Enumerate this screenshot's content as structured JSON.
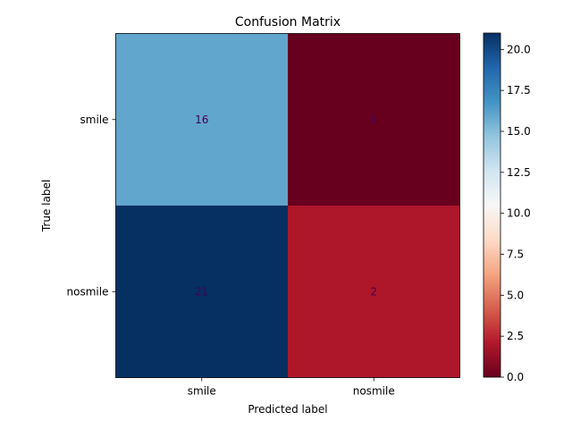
{
  "chart_data": {
    "type": "heatmap",
    "title": "Confusion Matrix",
    "xlabel": "Predicted label",
    "ylabel": "True label",
    "x_categories": [
      "smile",
      "nosmile"
    ],
    "y_categories": [
      "smile",
      "nosmile"
    ],
    "values": [
      [
        16,
        0
      ],
      [
        21,
        2
      ]
    ],
    "colormap": "RdBu",
    "colorbar": {
      "vmin": 0,
      "vmax": 21,
      "ticks": [
        0.0,
        2.5,
        5.0,
        7.5,
        10.0,
        12.5,
        15.0,
        17.5,
        20.0
      ],
      "tick_labels": [
        "0.0",
        "2.5",
        "5.0",
        "7.5",
        "10.0",
        "12.5",
        "15.0",
        "17.5",
        "20.0"
      ]
    },
    "cell_text_color": "#440154",
    "grid": false
  }
}
